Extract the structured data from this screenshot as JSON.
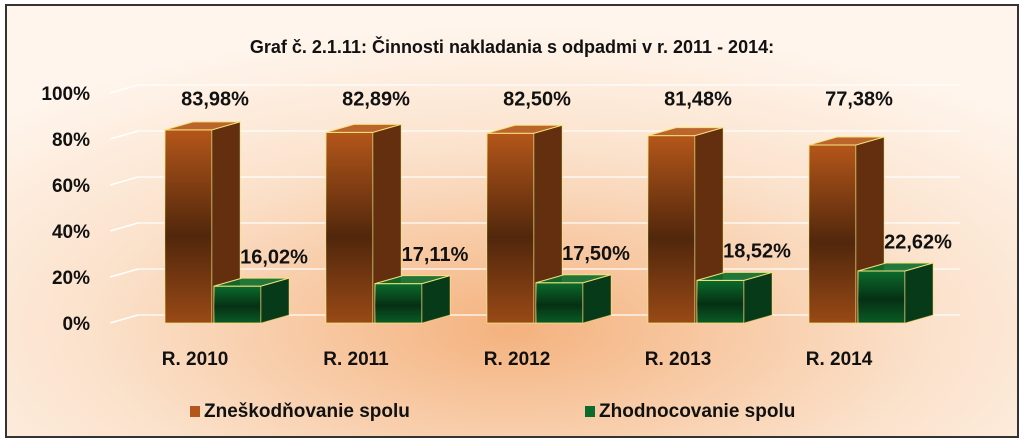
{
  "chart_data": {
    "type": "bar3d",
    "title": "Graf č. 2.1.11: Činnosti nakladania s odpadmi v r. 2011 - 2014:",
    "categories": [
      "R. 2010",
      "R. 2011",
      "R. 2012",
      "R. 2013",
      "R. 2014"
    ],
    "series": [
      {
        "name": "Zneškodňovanie spolu",
        "color": "#b4561a",
        "values": [
          83.98,
          82.89,
          82.5,
          81.48,
          77.38
        ],
        "value_labels": [
          "83,98%",
          "82,89%",
          "82,50%",
          "81,48%",
          "77,38%"
        ]
      },
      {
        "name": "Zhodnocovanie spolu",
        "color": "#0b6b2c",
        "values": [
          16.02,
          17.11,
          17.5,
          18.52,
          22.62
        ],
        "value_labels": [
          "16,02%",
          "17,11%",
          "17,50%",
          "18,52%",
          "22,62%"
        ]
      }
    ],
    "ylim": [
      0,
      100
    ],
    "yticks": [
      {
        "value": 0,
        "label": "0%"
      },
      {
        "value": 20,
        "label": "20%"
      },
      {
        "value": 40,
        "label": "40%"
      },
      {
        "value": 60,
        "label": "60%"
      },
      {
        "value": 80,
        "label": "80%"
      },
      {
        "value": 100,
        "label": "100%"
      }
    ],
    "grid": true,
    "legend": "bottom"
  }
}
